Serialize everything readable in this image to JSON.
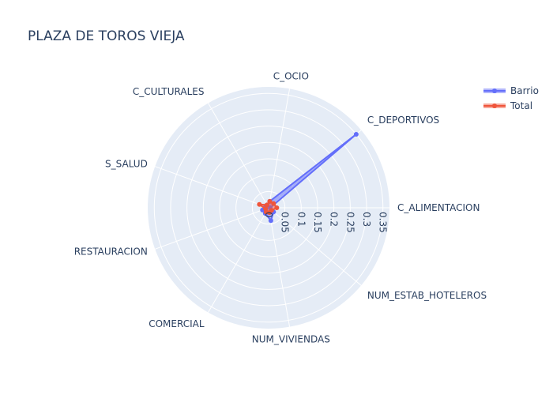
{
  "chart_data": {
    "type": "radar",
    "title": "PLAZA DE TOROS VIEJA",
    "axes": [
      "C_ALIMENTACION",
      "C_DEPORTIVOS",
      "C_OCIO",
      "C_CULTURALES",
      "S_SALUD",
      "RESTAURACION",
      "COMERCIAL",
      "NUM_VIVIENDAS",
      "NUM_ESTAB_HOTELEROS"
    ],
    "radial_ticks": [
      "0",
      "0.05",
      "0.1",
      "0.15",
      "0.2",
      "0.25",
      "0.3",
      "0.35"
    ],
    "radial_range": [
      0,
      0.37
    ],
    "series": [
      {
        "name": "Barrio",
        "color": "#636efa",
        "values": [
          0.005,
          0.35,
          0.02,
          0.01,
          0.01,
          0.02,
          0.02,
          0.04,
          0.02
        ]
      },
      {
        "name": "Total",
        "color": "#ef553b",
        "values": [
          0.025,
          0.02,
          0.02,
          0.01,
          0.03,
          0.01,
          0.015,
          0.015,
          0.012
        ]
      }
    ],
    "legend_position": "top-right"
  }
}
